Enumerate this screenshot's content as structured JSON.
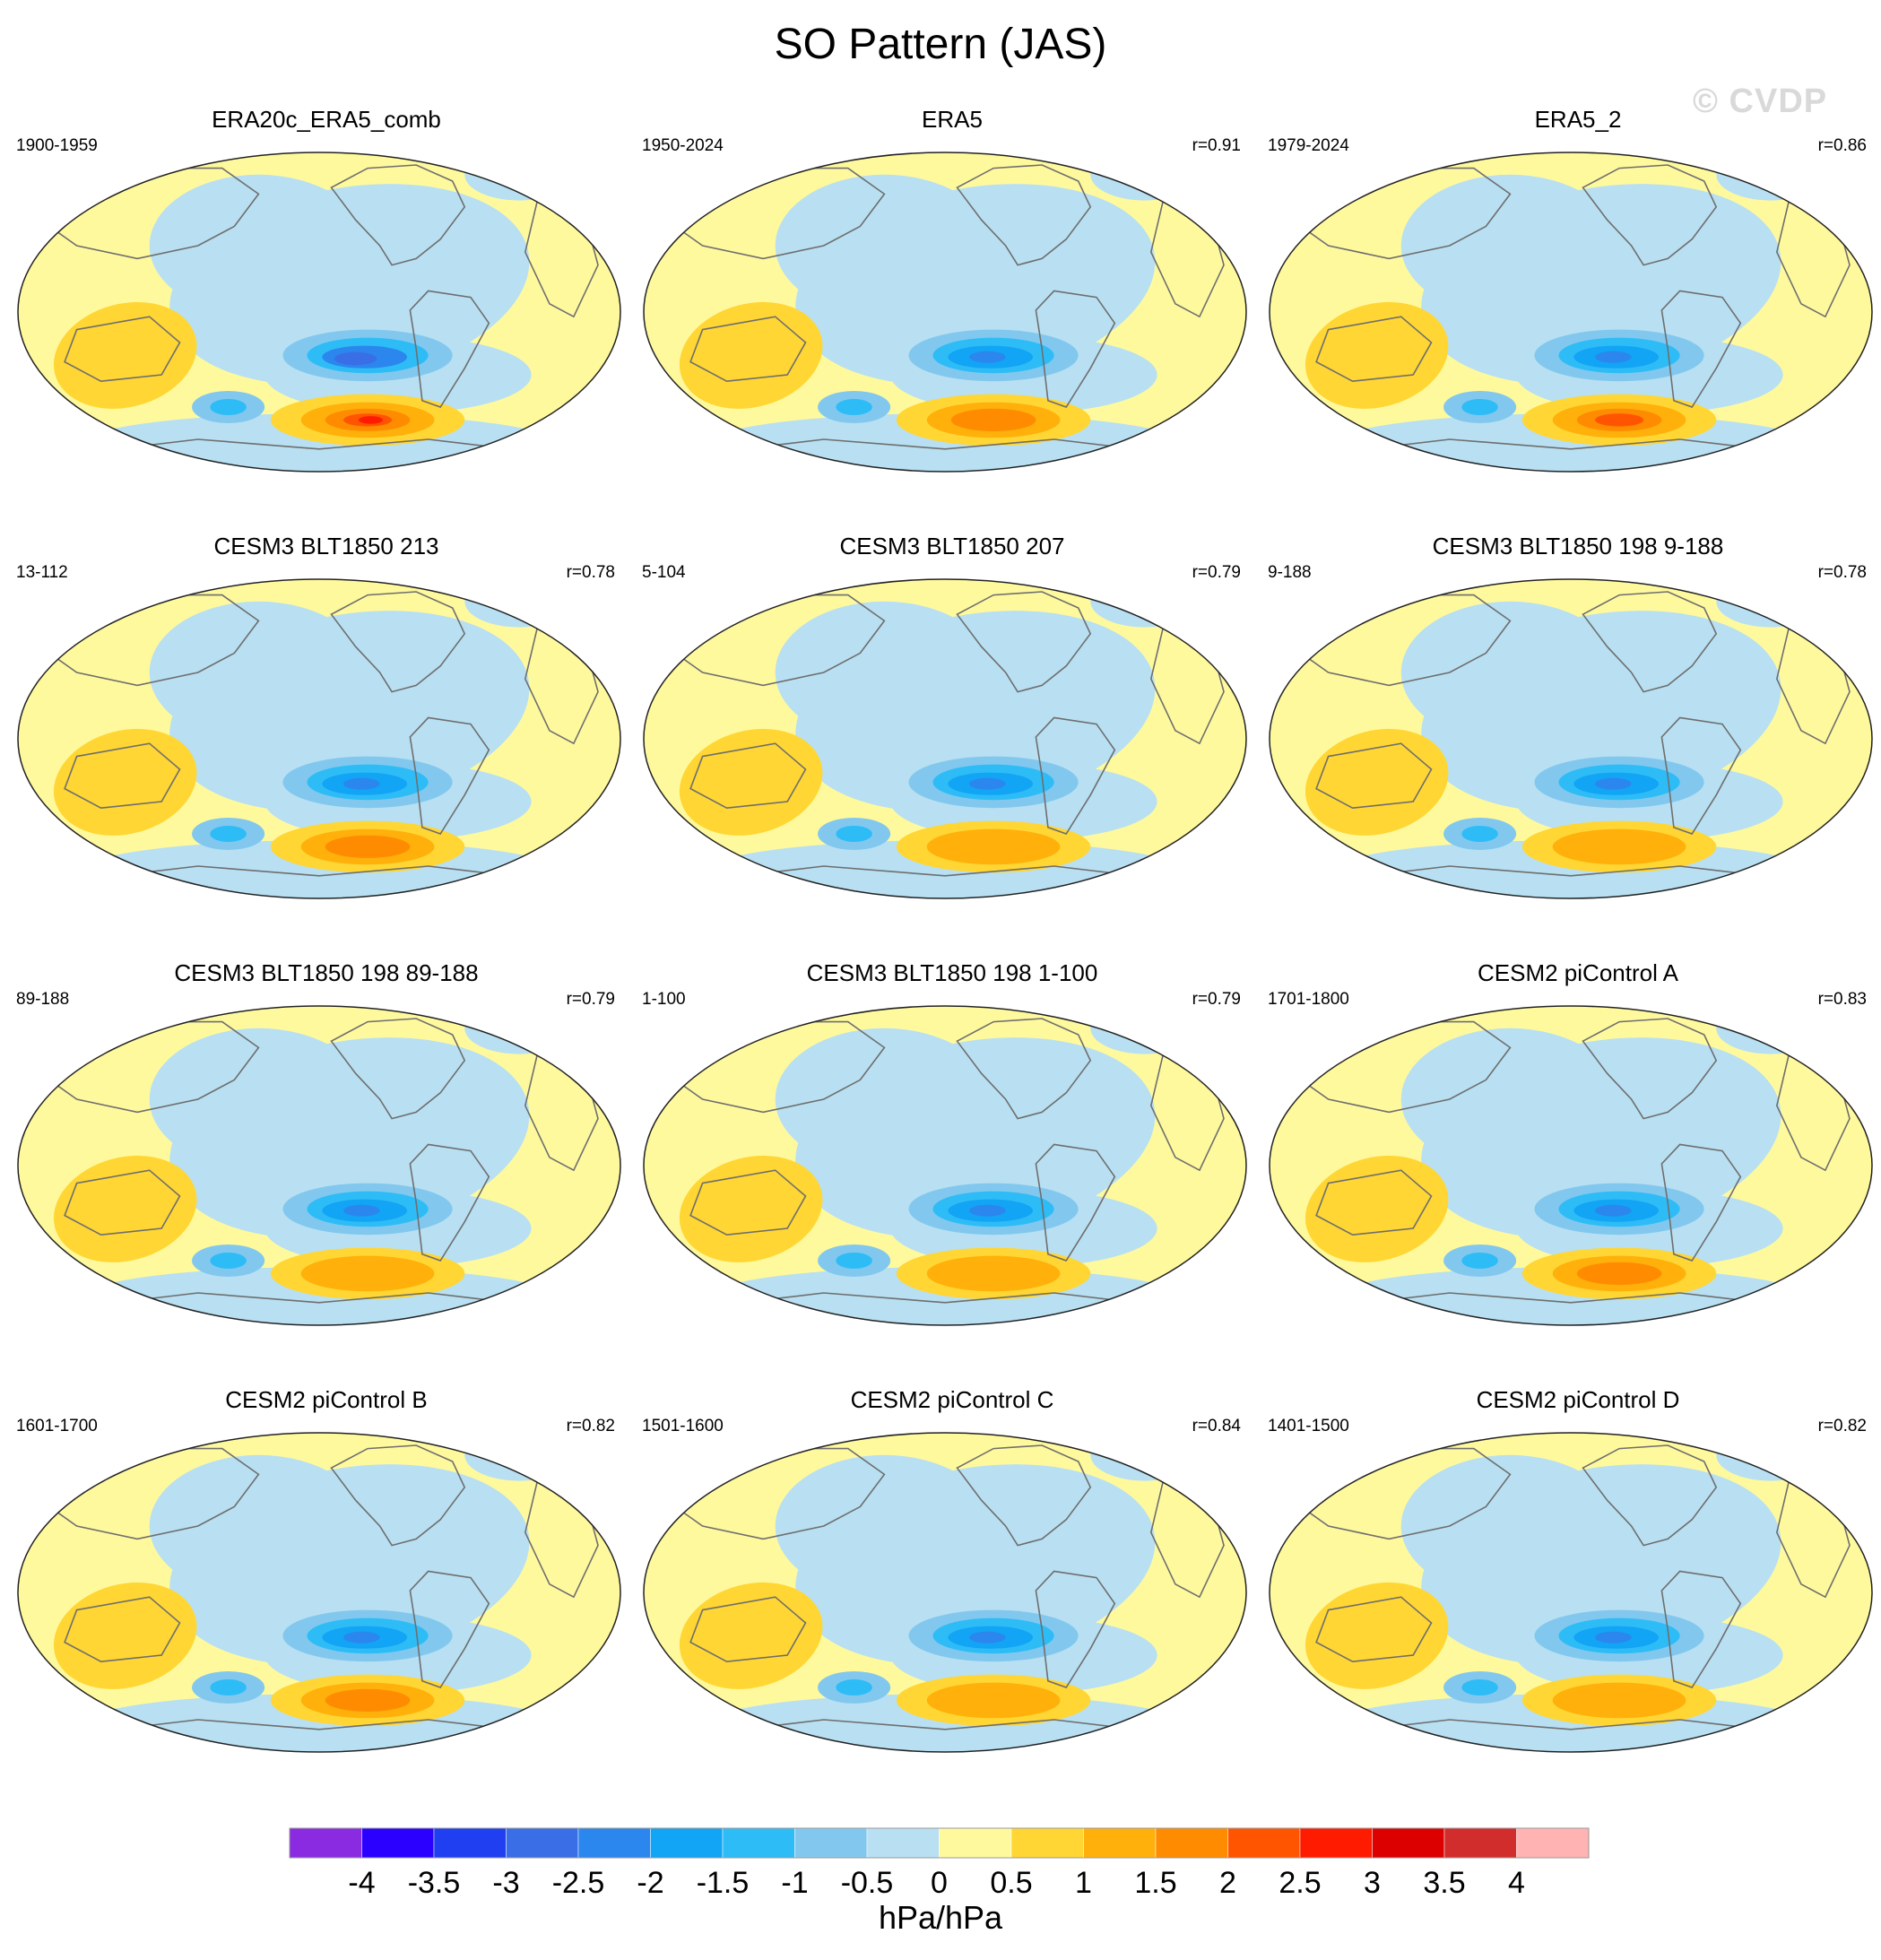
{
  "title": "SO Pattern (JAS)",
  "watermark": "© CVDP",
  "chart_data": {
    "type": "heatmap",
    "title": "SO Pattern (JAS)",
    "layout": "4 rows x 3 columns of global Robinson-projection maps",
    "units": "hPa/hPa",
    "colorbar": {
      "ticks": [
        "-4",
        "-3.5",
        "-3",
        "-2.5",
        "-2",
        "-1.5",
        "-1",
        "-0.5",
        "0",
        "0.5",
        "1",
        "1.5",
        "2",
        "2.5",
        "3",
        "3.5",
        "4"
      ],
      "colors": [
        "#8a2be2",
        "#2b00ff",
        "#1f3ff0",
        "#3a6ee6",
        "#2b86ee",
        "#12a4f5",
        "#2ebcf7",
        "#82c8ee",
        "#b8e0f2",
        "#fff99e",
        "#ffd633",
        "#ffb00a",
        "#ff8c00",
        "#ff5500",
        "#ff1b00",
        "#dc0000",
        "#d22d2d",
        "#ffb3b3"
      ],
      "range": [
        -4,
        4
      ]
    },
    "panels": [
      {
        "title": "ERA20c_ERA5_comb",
        "years": "1900-1959",
        "r": "",
        "max_negative": -2.5,
        "max_positive": 3.0
      },
      {
        "title": "ERA5",
        "years": "1950-2024",
        "r": "r=0.91",
        "max_negative": -2.0,
        "max_positive": 2.0
      },
      {
        "title": "ERA5_2",
        "years": "1979-2024",
        "r": "r=0.86",
        "max_negative": -2.0,
        "max_positive": 2.5
      },
      {
        "title": "CESM3 BLT1850 213",
        "years": "13-112",
        "r": "r=0.78",
        "max_negative": -2.0,
        "max_positive": 2.0
      },
      {
        "title": "CESM3 BLT1850 207",
        "years": "5-104",
        "r": "r=0.79",
        "max_negative": -2.0,
        "max_positive": 1.5
      },
      {
        "title": "CESM3 BLT1850 198 9-188",
        "years": "9-188",
        "r": "r=0.78",
        "max_negative": -2.0,
        "max_positive": 1.5
      },
      {
        "title": "CESM3 BLT1850 198 89-188",
        "years": "89-188",
        "r": "r=0.79",
        "max_negative": -2.0,
        "max_positive": 1.5
      },
      {
        "title": "CESM3 BLT1850 198 1-100",
        "years": "1-100",
        "r": "r=0.79",
        "max_negative": -2.0,
        "max_positive": 1.5
      },
      {
        "title": "CESM2 piControl A",
        "years": "1701-1800",
        "r": "r=0.83",
        "max_negative": -2.0,
        "max_positive": 2.0
      },
      {
        "title": "CESM2 piControl B",
        "years": "1601-1700",
        "r": "r=0.82",
        "max_negative": -2.0,
        "max_positive": 2.0
      },
      {
        "title": "CESM2 piControl C",
        "years": "1501-1600",
        "r": "r=0.84",
        "max_negative": -2.0,
        "max_positive": 1.5
      },
      {
        "title": "CESM2 piControl D",
        "years": "1401-1500",
        "r": "r=0.82",
        "max_negative": -2.0,
        "max_positive": 1.5
      }
    ]
  }
}
